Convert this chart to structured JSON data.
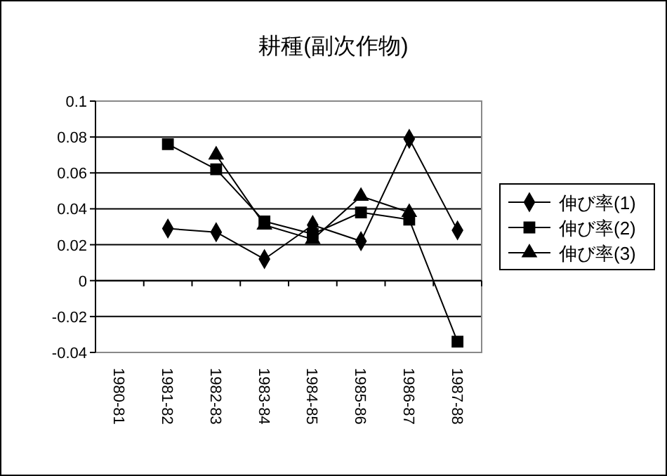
{
  "chart_data": {
    "type": "line",
    "title": "耕種(副次作物)",
    "categories": [
      "1980-81",
      "1981-82",
      "1982-83",
      "1983-84",
      "1984-85",
      "1985-86",
      "1986-87",
      "1987-88"
    ],
    "series": [
      {
        "name": "伸び率(1)",
        "color": "#000000",
        "marker": "diamond",
        "values": [
          null,
          0.029,
          0.027,
          0.012,
          0.031,
          0.022,
          0.079,
          0.028
        ]
      },
      {
        "name": "伸び率(2)",
        "color": "#000000",
        "marker": "square",
        "values": [
          null,
          0.076,
          0.062,
          0.033,
          0.026,
          0.038,
          0.034,
          -0.034
        ]
      },
      {
        "name": "伸び率(3)",
        "color": "#000000",
        "marker": "triangle",
        "values": [
          null,
          null,
          0.07,
          0.031,
          0.023,
          0.047,
          0.038,
          null
        ]
      }
    ],
    "ylim": [
      -0.04,
      0.1
    ],
    "yticks": [
      -0.04,
      -0.02,
      0,
      0.02,
      0.04,
      0.06,
      0.08,
      0.1
    ],
    "grid": "y",
    "legend": "right"
  }
}
